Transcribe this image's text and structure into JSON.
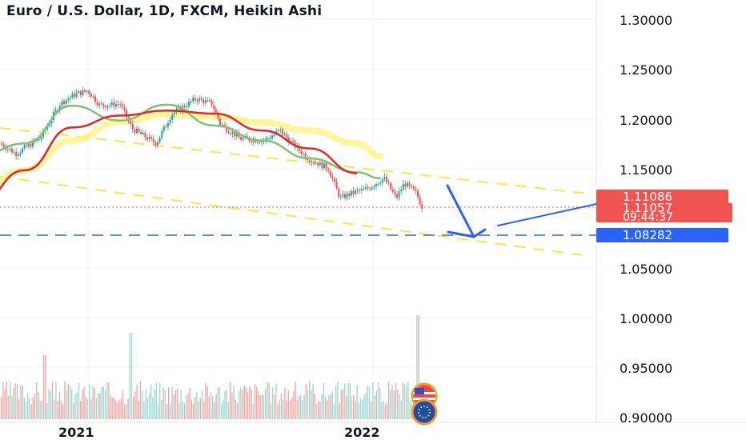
{
  "title": "Euro / U.S. Dollar, 1D, FXCM, Heikin Ashi",
  "chart_data": {
    "type": "candlestick",
    "symbol": "Euro / U.S. Dollar",
    "interval": "1D",
    "source": "FXCM",
    "style": "Heikin Ashi",
    "y_ticks": [
      "1.30000",
      "1.25000",
      "1.20000",
      "1.15000",
      "1.10000",
      "1.05000",
      "1.00000",
      "0.95000",
      "0.90000"
    ],
    "ylim": [
      0.9,
      1.3
    ],
    "x_ticks": [
      "2021",
      "2022"
    ],
    "grid": true,
    "price_tags": [
      {
        "label": "1.11086",
        "value": 1.11086,
        "color": "#f05350"
      },
      {
        "label": "1.11057",
        "value": 1.11057,
        "color": "#f05350"
      },
      {
        "label": "09:44:37",
        "value": 1.11057,
        "color": "#f05350"
      },
      {
        "label": "1.08282",
        "value": 1.08282,
        "color": "#2962ff"
      }
    ],
    "horizontal_line": {
      "value": 1.08282,
      "color": "#2962ff",
      "style": "dashed"
    },
    "series": [
      {
        "kind": "ema_long",
        "color": "#e0262a",
        "points": [
          [
            "2020-09",
            1.113
          ],
          [
            "2020-11",
            1.148
          ],
          [
            "2021-01",
            1.191
          ],
          [
            "2021-03",
            1.203
          ],
          [
            "2021-05",
            1.208
          ],
          [
            "2021-07",
            1.205
          ],
          [
            "2021-09",
            1.188
          ],
          [
            "2021-11",
            1.17
          ],
          [
            "2022-01",
            1.145
          ]
        ]
      },
      {
        "kind": "ema_mid",
        "color": "#7fc17a",
        "points": [
          [
            "2020-09",
            1.162
          ],
          [
            "2020-11",
            1.175
          ],
          [
            "2021-01",
            1.213
          ],
          [
            "2021-03",
            1.198
          ],
          [
            "2021-05",
            1.214
          ],
          [
            "2021-07",
            1.193
          ],
          [
            "2021-09",
            1.178
          ],
          [
            "2021-11",
            1.16
          ],
          [
            "2022-01",
            1.146
          ],
          [
            "2022-02",
            1.14
          ]
        ]
      },
      {
        "kind": "ema_band",
        "color": "#fff27a",
        "points": [
          [
            "2020-09",
            1.122
          ],
          [
            "2020-11",
            1.148
          ],
          [
            "2021-01",
            1.178
          ],
          [
            "2021-03",
            1.197
          ],
          [
            "2021-05",
            1.204
          ],
          [
            "2021-07",
            1.202
          ],
          [
            "2021-09",
            1.196
          ],
          [
            "2021-11",
            1.188
          ],
          [
            "2022-01",
            1.175
          ],
          [
            "2022-02",
            1.162
          ]
        ]
      }
    ],
    "annotations": [
      {
        "kind": "arrow_down",
        "color": "#2962ff",
        "from_value": 1.136,
        "to_value": 1.083
      },
      {
        "kind": "arrow_up",
        "color": "#2962ff",
        "from_value": 1.083,
        "to_value": 1.113
      }
    ],
    "volume": {
      "max_spike_date": "2022-01",
      "note": "volume histogram at bottom"
    },
    "event_icons": [
      "US flag",
      "EU flag"
    ]
  }
}
